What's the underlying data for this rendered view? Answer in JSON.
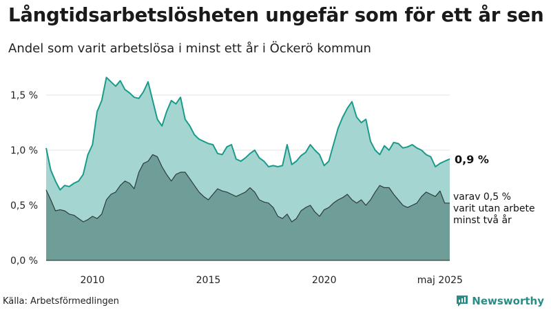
{
  "header": {
    "title": "Långtidsarbetslösheten ungefär som för ett år sen",
    "subtitle": "Andel som varit arbetslösa i minst ett år i Öckerö kommun"
  },
  "footer": {
    "source": "Källa: Arbetsförmedlingen",
    "logo_text": "Newsworthy"
  },
  "colors": {
    "total_fill": "#a5d5d0",
    "total_line": "#1a9a8a",
    "sub_fill": "#6f9d98",
    "sub_line": "#2c3b3a",
    "brand": "#2a8c84"
  },
  "chart_data": {
    "type": "area",
    "ylim": [
      0,
      1.85
    ],
    "yticks": [
      {
        "value": 0.0,
        "label": "0,0 %"
      },
      {
        "value": 0.5,
        "label": "0,5 %"
      },
      {
        "value": 1.0,
        "label": "1,0 %"
      },
      {
        "value": 1.5,
        "label": "1,5 %"
      }
    ],
    "xticks": [
      {
        "value": 2010,
        "label": "2010"
      },
      {
        "value": 2015,
        "label": "2015"
      },
      {
        "value": 2020,
        "label": "2020"
      },
      {
        "value": 2025,
        "label": "maj 2025"
      }
    ],
    "xlim": [
      2008.0,
      2025.42
    ],
    "end_value_label": "0,9 %",
    "sub_label_lines": [
      "varav 0,5 %",
      "varit utan arbete",
      "minst två år"
    ],
    "series": [
      {
        "x": [
          2008.0,
          2008.2,
          2008.4,
          2008.6,
          2008.8,
          2009.0,
          2009.2,
          2009.4,
          2009.6,
          2009.8,
          2010.0,
          2010.2,
          2010.4,
          2010.6,
          2010.8,
          2011.0,
          2011.2,
          2011.4,
          2011.6,
          2011.8,
          2012.0,
          2012.2,
          2012.4,
          2012.6,
          2012.8,
          2013.0,
          2013.2,
          2013.4,
          2013.6,
          2013.8,
          2014.0,
          2014.2,
          2014.4,
          2014.6,
          2014.8,
          2015.0,
          2015.2,
          2015.4,
          2015.6,
          2015.8,
          2016.0,
          2016.2,
          2016.4,
          2016.6,
          2016.8,
          2017.0,
          2017.2,
          2017.4,
          2017.6,
          2017.8,
          2018.0,
          2018.2,
          2018.4,
          2018.6,
          2018.8,
          2019.0,
          2019.2,
          2019.4,
          2019.6,
          2019.8,
          2020.0,
          2020.2,
          2020.4,
          2020.6,
          2020.8,
          2021.0,
          2021.2,
          2021.4,
          2021.6,
          2021.8,
          2022.0,
          2022.2,
          2022.4,
          2022.6,
          2022.8,
          2023.0,
          2023.2,
          2023.4,
          2023.6,
          2023.8,
          2024.0,
          2024.2,
          2024.4,
          2024.6,
          2024.8,
          2025.0,
          2025.2,
          2025.42
        ],
        "values": [
          1.02,
          0.82,
          0.72,
          0.64,
          0.68,
          0.67,
          0.7,
          0.72,
          0.78,
          0.96,
          1.05,
          1.35,
          1.45,
          1.66,
          1.62,
          1.58,
          1.63,
          1.55,
          1.52,
          1.48,
          1.47,
          1.53,
          1.62,
          1.45,
          1.28,
          1.22,
          1.35,
          1.45,
          1.42,
          1.48,
          1.28,
          1.22,
          1.14,
          1.1,
          1.08,
          1.06,
          1.05,
          0.97,
          0.96,
          1.03,
          1.05,
          0.92,
          0.9,
          0.93,
          0.97,
          1.0,
          0.93,
          0.9,
          0.85,
          0.86,
          0.85,
          0.86,
          1.05,
          0.87,
          0.9,
          0.95,
          0.98,
          1.05,
          1.0,
          0.96,
          0.86,
          0.9,
          1.05,
          1.2,
          1.3,
          1.38,
          1.44,
          1.3,
          1.25,
          1.28,
          1.08,
          1.0,
          0.96,
          1.04,
          1.0,
          1.07,
          1.06,
          1.02,
          1.03,
          1.05,
          1.02,
          1.0,
          0.96,
          0.94,
          0.85,
          0.88,
          0.9,
          0.92
        ]
      },
      {
        "x": [
          2008.0,
          2008.2,
          2008.4,
          2008.6,
          2008.8,
          2009.0,
          2009.2,
          2009.4,
          2009.6,
          2009.8,
          2010.0,
          2010.2,
          2010.4,
          2010.6,
          2010.8,
          2011.0,
          2011.2,
          2011.4,
          2011.6,
          2011.8,
          2012.0,
          2012.2,
          2012.4,
          2012.6,
          2012.8,
          2013.0,
          2013.2,
          2013.4,
          2013.6,
          2013.8,
          2014.0,
          2014.2,
          2014.4,
          2014.6,
          2014.8,
          2015.0,
          2015.2,
          2015.4,
          2015.6,
          2015.8,
          2016.0,
          2016.2,
          2016.4,
          2016.6,
          2016.8,
          2017.0,
          2017.2,
          2017.4,
          2017.6,
          2017.8,
          2018.0,
          2018.2,
          2018.4,
          2018.6,
          2018.8,
          2019.0,
          2019.2,
          2019.4,
          2019.6,
          2019.8,
          2020.0,
          2020.2,
          2020.4,
          2020.6,
          2020.8,
          2021.0,
          2021.2,
          2021.4,
          2021.6,
          2021.8,
          2022.0,
          2022.2,
          2022.4,
          2022.6,
          2022.8,
          2023.0,
          2023.2,
          2023.4,
          2023.6,
          2023.8,
          2024.0,
          2024.2,
          2024.4,
          2024.6,
          2024.8,
          2025.0,
          2025.2,
          2025.42
        ],
        "values": [
          0.64,
          0.55,
          0.45,
          0.46,
          0.45,
          0.42,
          0.41,
          0.38,
          0.35,
          0.37,
          0.4,
          0.38,
          0.42,
          0.55,
          0.6,
          0.62,
          0.68,
          0.72,
          0.7,
          0.65,
          0.8,
          0.88,
          0.9,
          0.96,
          0.94,
          0.85,
          0.78,
          0.72,
          0.78,
          0.8,
          0.8,
          0.74,
          0.68,
          0.62,
          0.58,
          0.55,
          0.6,
          0.65,
          0.63,
          0.62,
          0.6,
          0.58,
          0.6,
          0.62,
          0.66,
          0.62,
          0.55,
          0.53,
          0.52,
          0.48,
          0.4,
          0.38,
          0.42,
          0.35,
          0.38,
          0.45,
          0.48,
          0.5,
          0.44,
          0.4,
          0.46,
          0.48,
          0.52,
          0.55,
          0.57,
          0.6,
          0.55,
          0.52,
          0.55,
          0.5,
          0.55,
          0.62,
          0.68,
          0.66,
          0.66,
          0.6,
          0.55,
          0.5,
          0.48,
          0.5,
          0.52,
          0.58,
          0.62,
          0.6,
          0.58,
          0.63,
          0.52,
          0.52
        ]
      }
    ]
  }
}
